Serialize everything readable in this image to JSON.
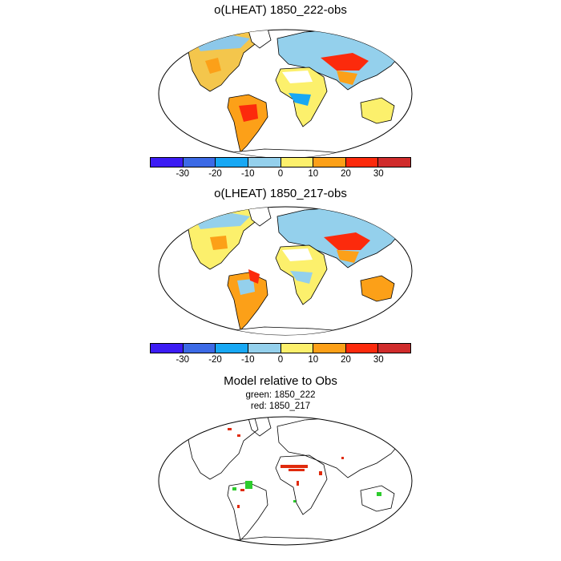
{
  "panels": [
    {
      "title": "o(LHEAT) 1850_222-obs"
    },
    {
      "title": "o(LHEAT) 1850_217-obs"
    },
    {
      "title": "Model relative to Obs",
      "lines": [
        "green: 1850_222",
        "red: 1850_217"
      ]
    }
  ],
  "colorbar": {
    "colors": [
      "#3c1cf4",
      "#3c6ae6",
      "#18a8f4",
      "#94d0ec",
      "#fcf06c",
      "#fca018",
      "#fc2a0c",
      "#d02c2c"
    ],
    "tick_labels": [
      "-30",
      "-20",
      "-10",
      "0",
      "10",
      "20",
      "30"
    ]
  },
  "legend_colors": {
    "green": "#2ccc2c",
    "red": "#e02a0c"
  }
}
